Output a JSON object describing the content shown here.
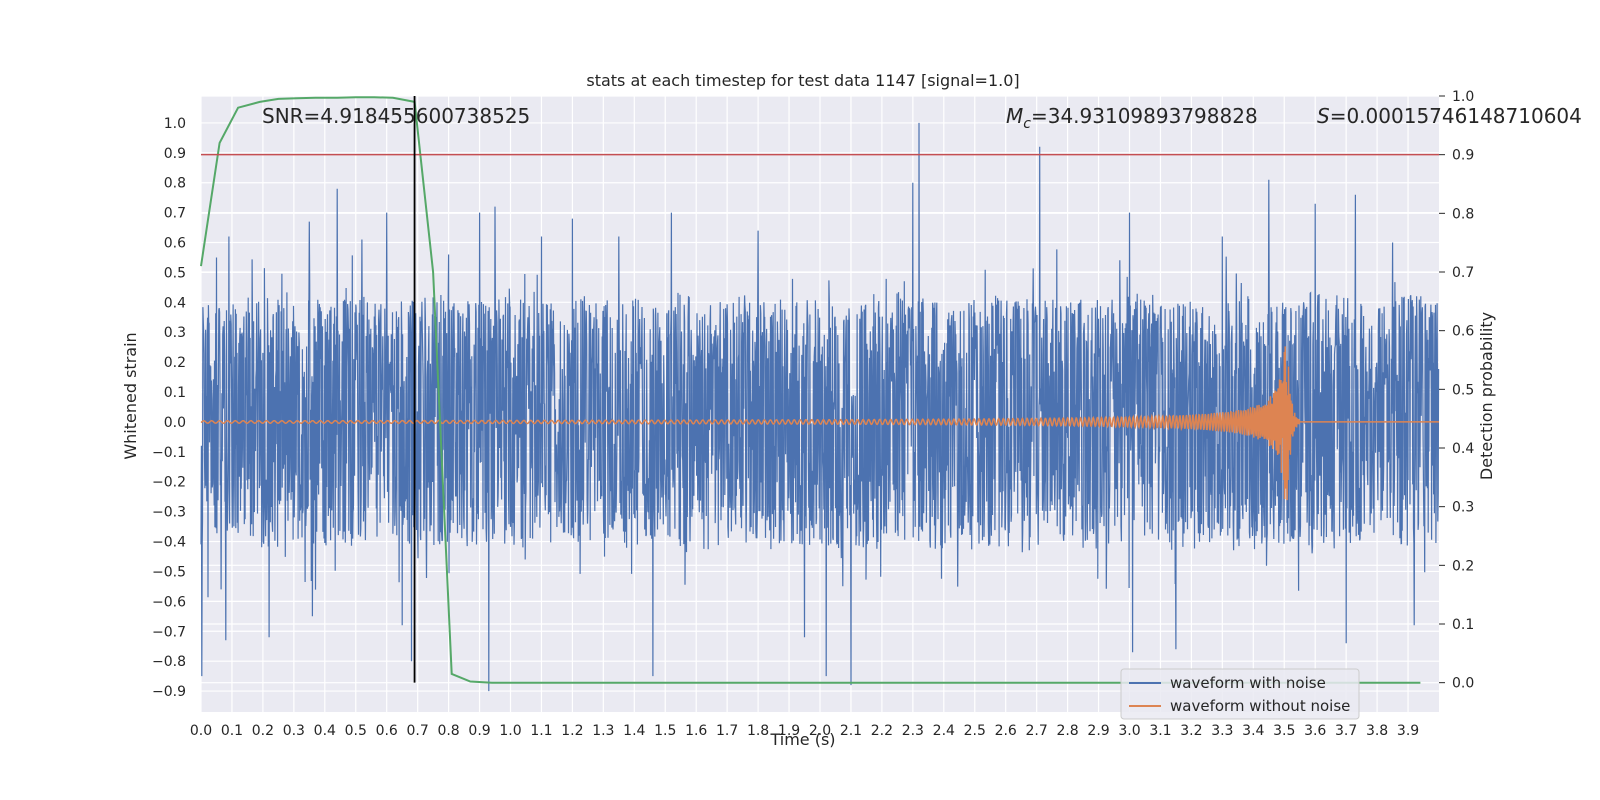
{
  "chart_data": {
    "type": "line",
    "title": "stats at each timestep for test data 1147 [signal=1.0]",
    "xlabel": "Time (s)",
    "ylabel_left": "Whitened strain",
    "ylabel_right": "Detection probability",
    "xlim": [
      0.0,
      4.0
    ],
    "ylim_left": [
      -0.97,
      1.09
    ],
    "ylim_right": [
      -0.05,
      1.0
    ],
    "x_ticks": [
      "0.0",
      "0.1",
      "0.2",
      "0.3",
      "0.4",
      "0.5",
      "0.6",
      "0.7",
      "0.8",
      "0.9",
      "1.0",
      "1.1",
      "1.2",
      "1.3",
      "1.4",
      "1.5",
      "1.6",
      "1.7",
      "1.8",
      "1.9",
      "2.0",
      "2.1",
      "2.2",
      "2.3",
      "2.4",
      "2.5",
      "2.6",
      "2.7",
      "2.8",
      "2.9",
      "3.0",
      "3.1",
      "3.2",
      "3.3",
      "3.4",
      "3.5",
      "3.6",
      "3.7",
      "3.8",
      "3.9"
    ],
    "y_ticks_left": [
      "1.0",
      "0.9",
      "0.8",
      "0.7",
      "0.6",
      "0.5",
      "0.4",
      "0.3",
      "0.2",
      "0.1",
      "0.0",
      "−0.1",
      "−0.2",
      "−0.3",
      "−0.4",
      "−0.5",
      "−0.6",
      "−0.7",
      "−0.8",
      "−0.9"
    ],
    "y_ticks_right": [
      "1.0",
      "0.9",
      "0.8",
      "0.7",
      "0.6",
      "0.5",
      "0.4",
      "0.3",
      "0.2",
      "0.1",
      "0.0"
    ],
    "grid": true,
    "annotations": {
      "snr": "SNR=4.918455600738525",
      "mc_symbol": "M",
      "mc_sub": "c",
      "mc_value": "=34.93109893798828",
      "s_symbol": "S",
      "s_value": "=0.00015746148710604"
    },
    "threshold_line": {
      "value": 0.9,
      "axis": "right",
      "color": "#c44e52"
    },
    "peak_time_line": {
      "x": 0.69,
      "color": "#000000"
    },
    "noise_series": {
      "name": "waveform with noise",
      "color": "#4c72b0",
      "envelope_upper": [
        0.45,
        0.38,
        0.42,
        0.4,
        0.43,
        0.41,
        0.39,
        0.44,
        0.42,
        0.4,
        0.43,
        0.41,
        0.45,
        0.4,
        0.42,
        0.44,
        0.39,
        0.43,
        0.41,
        0.42,
        0.4,
        0.43,
        0.45,
        0.41,
        0.42,
        0.44,
        0.4,
        0.43,
        0.41,
        0.42,
        0.44,
        0.4,
        0.42,
        0.43,
        0.41,
        0.44,
        0.42,
        0.4,
        0.43,
        0.41
      ],
      "envelope_lower": [
        -0.45,
        -0.4,
        -0.43,
        -0.41,
        -0.42,
        -0.44,
        -0.4,
        -0.43,
        -0.42,
        -0.41,
        -0.44,
        -0.42,
        -0.4,
        -0.43,
        -0.41,
        -0.42,
        -0.44,
        -0.4,
        -0.43,
        -0.41,
        -0.42,
        -0.44,
        -0.4,
        -0.43,
        -0.41,
        -0.42,
        -0.44,
        -0.4,
        -0.43,
        -0.41,
        -0.42,
        -0.44,
        -0.4,
        -0.43,
        -0.41,
        -0.44,
        -0.42,
        -0.4,
        -0.43,
        -0.41
      ],
      "peaks": [
        {
          "x": 0.003,
          "y": -0.85
        },
        {
          "x": 0.05,
          "y": 0.55
        },
        {
          "x": 0.08,
          "y": -0.73
        },
        {
          "x": 0.09,
          "y": 0.62
        },
        {
          "x": 0.22,
          "y": -0.72
        },
        {
          "x": 0.35,
          "y": 0.67
        },
        {
          "x": 0.36,
          "y": -0.65
        },
        {
          "x": 0.44,
          "y": 0.78
        },
        {
          "x": 0.52,
          "y": 0.61
        },
        {
          "x": 0.6,
          "y": 0.7
        },
        {
          "x": 0.65,
          "y": -0.68
        },
        {
          "x": 0.68,
          "y": -0.8
        },
        {
          "x": 0.8,
          "y": 0.56
        },
        {
          "x": 0.9,
          "y": 0.7
        },
        {
          "x": 0.93,
          "y": -0.9
        },
        {
          "x": 0.95,
          "y": 0.72
        },
        {
          "x": 1.1,
          "y": 0.62
        },
        {
          "x": 1.2,
          "y": 0.68
        },
        {
          "x": 1.35,
          "y": 0.62
        },
        {
          "x": 1.46,
          "y": -0.85
        },
        {
          "x": 1.52,
          "y": -0.87
        },
        {
          "x": 1.52,
          "y": 0.7
        },
        {
          "x": 1.8,
          "y": 0.64
        },
        {
          "x": 1.95,
          "y": -0.72
        },
        {
          "x": 2.02,
          "y": -0.85
        },
        {
          "x": 2.1,
          "y": -0.88
        },
        {
          "x": 2.3,
          "y": 0.8
        },
        {
          "x": 2.32,
          "y": 1.0
        },
        {
          "x": 2.71,
          "y": 0.92
        },
        {
          "x": 3.0,
          "y": 0.7
        },
        {
          "x": 3.01,
          "y": -0.77
        },
        {
          "x": 3.15,
          "y": -0.76
        },
        {
          "x": 3.3,
          "y": 0.62
        },
        {
          "x": 3.45,
          "y": 0.81
        },
        {
          "x": 3.6,
          "y": 0.73
        },
        {
          "x": 3.7,
          "y": -0.74
        },
        {
          "x": 3.73,
          "y": 0.76
        },
        {
          "x": 3.85,
          "y": 0.6
        },
        {
          "x": 3.92,
          "y": -0.68
        }
      ]
    },
    "clean_series": {
      "name": "waveform without noise",
      "color": "#dd8452",
      "merger_time": 3.51,
      "peak_amplitude": 0.27,
      "start_amplitude": 0.004
    },
    "probability_series": {
      "name": "detection probability",
      "color": "#55a868",
      "x": [
        0.0,
        0.06,
        0.12,
        0.19,
        0.25,
        0.31,
        0.37,
        0.44,
        0.5,
        0.56,
        0.62,
        0.69,
        0.75,
        0.81,
        0.87,
        0.94,
        1.0,
        1.06,
        3.94
      ],
      "y": [
        0.71,
        0.92,
        0.98,
        0.99,
        0.995,
        0.996,
        0.997,
        0.997,
        0.998,
        0.998,
        0.997,
        0.99,
        0.7,
        0.015,
        0.002,
        0.0,
        0.0,
        0.0,
        0.0
      ]
    },
    "legend": {
      "placement": "lower-right",
      "entries": [
        {
          "label": "waveform with noise",
          "color": "#4c72b0"
        },
        {
          "label": "waveform without noise",
          "color": "#dd8452"
        }
      ]
    }
  }
}
